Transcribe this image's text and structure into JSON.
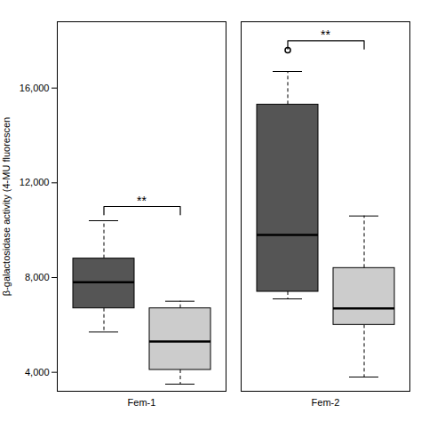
{
  "chart_data": {
    "type": "box",
    "ylabel": "β-galactosidase activity (4-MU fluorescen",
    "categories": [
      "Fem-1",
      "Fem-2"
    ],
    "series": [
      {
        "color": "#555555",
        "boxes": [
          {
            "q1": 6700,
            "median": 7800,
            "q3": 8800,
            "whislo": 5700,
            "whishi": 10400,
            "fliers": []
          },
          {
            "q1": 7400,
            "median": 9800,
            "q3": 15300,
            "whislo": 7100,
            "whishi": 16700,
            "fliers": [
              17600
            ]
          }
        ]
      },
      {
        "color": "#cccccc",
        "boxes": [
          {
            "q1": 4100,
            "median": 5300,
            "q3": 6700,
            "whislo": 3500,
            "whishi": 7000,
            "fliers": []
          },
          {
            "q1": 6000,
            "median": 6700,
            "q3": 8400,
            "whislo": 3800,
            "whishi": 10600,
            "fliers": []
          }
        ]
      }
    ],
    "annotations": [
      {
        "category": "Fem-1",
        "y": 11000,
        "text": "**"
      },
      {
        "category": "Fem-2",
        "y": 18000,
        "text": "**"
      }
    ],
    "ylim": [
      3200,
      18800
    ],
    "yticks": [
      4000,
      8000,
      12000,
      16000
    ],
    "grid": false
  }
}
